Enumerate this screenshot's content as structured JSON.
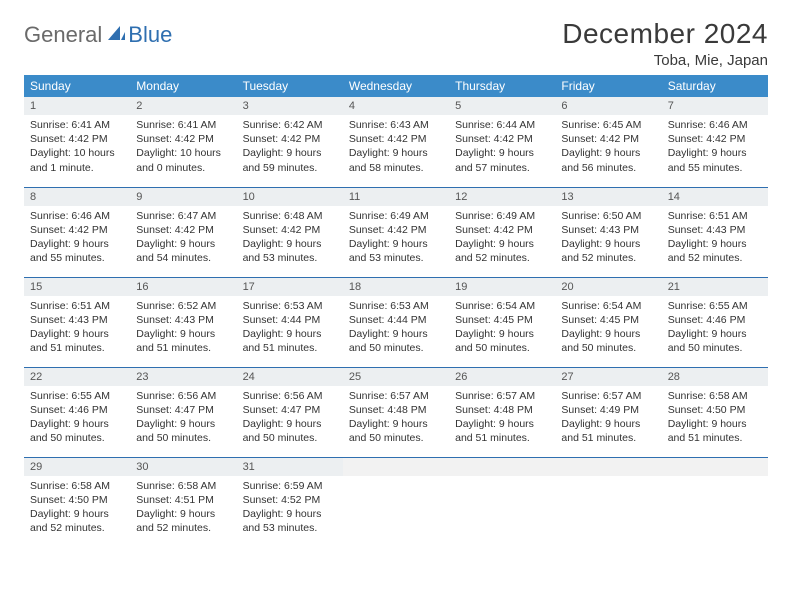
{
  "logo": {
    "text1": "General",
    "text2": "Blue"
  },
  "title": "December 2024",
  "location": "Toba, Mie, Japan",
  "colors": {
    "header_bg": "#3b8bc9",
    "header_text": "#ffffff",
    "row_border": "#2f6fb0",
    "daynum_bg": "#eceff1",
    "logo_gray": "#6a6a6a",
    "logo_blue": "#2f6fb0"
  },
  "weekdays": [
    "Sunday",
    "Monday",
    "Tuesday",
    "Wednesday",
    "Thursday",
    "Friday",
    "Saturday"
  ],
  "days": [
    {
      "n": 1,
      "sunrise": "6:41 AM",
      "sunset": "4:42 PM",
      "daylight": "10 hours and 1 minute."
    },
    {
      "n": 2,
      "sunrise": "6:41 AM",
      "sunset": "4:42 PM",
      "daylight": "10 hours and 0 minutes."
    },
    {
      "n": 3,
      "sunrise": "6:42 AM",
      "sunset": "4:42 PM",
      "daylight": "9 hours and 59 minutes."
    },
    {
      "n": 4,
      "sunrise": "6:43 AM",
      "sunset": "4:42 PM",
      "daylight": "9 hours and 58 minutes."
    },
    {
      "n": 5,
      "sunrise": "6:44 AM",
      "sunset": "4:42 PM",
      "daylight": "9 hours and 57 minutes."
    },
    {
      "n": 6,
      "sunrise": "6:45 AM",
      "sunset": "4:42 PM",
      "daylight": "9 hours and 56 minutes."
    },
    {
      "n": 7,
      "sunrise": "6:46 AM",
      "sunset": "4:42 PM",
      "daylight": "9 hours and 55 minutes."
    },
    {
      "n": 8,
      "sunrise": "6:46 AM",
      "sunset": "4:42 PM",
      "daylight": "9 hours and 55 minutes."
    },
    {
      "n": 9,
      "sunrise": "6:47 AM",
      "sunset": "4:42 PM",
      "daylight": "9 hours and 54 minutes."
    },
    {
      "n": 10,
      "sunrise": "6:48 AM",
      "sunset": "4:42 PM",
      "daylight": "9 hours and 53 minutes."
    },
    {
      "n": 11,
      "sunrise": "6:49 AM",
      "sunset": "4:42 PM",
      "daylight": "9 hours and 53 minutes."
    },
    {
      "n": 12,
      "sunrise": "6:49 AM",
      "sunset": "4:42 PM",
      "daylight": "9 hours and 52 minutes."
    },
    {
      "n": 13,
      "sunrise": "6:50 AM",
      "sunset": "4:43 PM",
      "daylight": "9 hours and 52 minutes."
    },
    {
      "n": 14,
      "sunrise": "6:51 AM",
      "sunset": "4:43 PM",
      "daylight": "9 hours and 52 minutes."
    },
    {
      "n": 15,
      "sunrise": "6:51 AM",
      "sunset": "4:43 PM",
      "daylight": "9 hours and 51 minutes."
    },
    {
      "n": 16,
      "sunrise": "6:52 AM",
      "sunset": "4:43 PM",
      "daylight": "9 hours and 51 minutes."
    },
    {
      "n": 17,
      "sunrise": "6:53 AM",
      "sunset": "4:44 PM",
      "daylight": "9 hours and 51 minutes."
    },
    {
      "n": 18,
      "sunrise": "6:53 AM",
      "sunset": "4:44 PM",
      "daylight": "9 hours and 50 minutes."
    },
    {
      "n": 19,
      "sunrise": "6:54 AM",
      "sunset": "4:45 PM",
      "daylight": "9 hours and 50 minutes."
    },
    {
      "n": 20,
      "sunrise": "6:54 AM",
      "sunset": "4:45 PM",
      "daylight": "9 hours and 50 minutes."
    },
    {
      "n": 21,
      "sunrise": "6:55 AM",
      "sunset": "4:46 PM",
      "daylight": "9 hours and 50 minutes."
    },
    {
      "n": 22,
      "sunrise": "6:55 AM",
      "sunset": "4:46 PM",
      "daylight": "9 hours and 50 minutes."
    },
    {
      "n": 23,
      "sunrise": "6:56 AM",
      "sunset": "4:47 PM",
      "daylight": "9 hours and 50 minutes."
    },
    {
      "n": 24,
      "sunrise": "6:56 AM",
      "sunset": "4:47 PM",
      "daylight": "9 hours and 50 minutes."
    },
    {
      "n": 25,
      "sunrise": "6:57 AM",
      "sunset": "4:48 PM",
      "daylight": "9 hours and 50 minutes."
    },
    {
      "n": 26,
      "sunrise": "6:57 AM",
      "sunset": "4:48 PM",
      "daylight": "9 hours and 51 minutes."
    },
    {
      "n": 27,
      "sunrise": "6:57 AM",
      "sunset": "4:49 PM",
      "daylight": "9 hours and 51 minutes."
    },
    {
      "n": 28,
      "sunrise": "6:58 AM",
      "sunset": "4:50 PM",
      "daylight": "9 hours and 51 minutes."
    },
    {
      "n": 29,
      "sunrise": "6:58 AM",
      "sunset": "4:50 PM",
      "daylight": "9 hours and 52 minutes."
    },
    {
      "n": 30,
      "sunrise": "6:58 AM",
      "sunset": "4:51 PM",
      "daylight": "9 hours and 52 minutes."
    },
    {
      "n": 31,
      "sunrise": "6:59 AM",
      "sunset": "4:52 PM",
      "daylight": "9 hours and 53 minutes."
    }
  ],
  "labels": {
    "sunrise": "Sunrise:",
    "sunset": "Sunset:",
    "daylight": "Daylight:"
  },
  "layout": {
    "start_weekday": 0,
    "total_cells": 35
  }
}
